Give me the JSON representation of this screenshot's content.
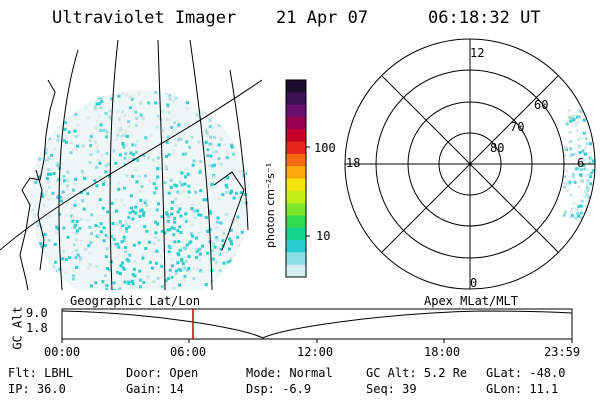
{
  "header": {
    "title": "Ultraviolet Imager",
    "date": "21 Apr 07",
    "time": "06:18:32 UT"
  },
  "colorbar": {
    "unit_label": "photon cm⁻²s⁻¹",
    "ticks": [
      "100",
      "10"
    ],
    "colors": [
      "#1a0a2e",
      "#3b0f52",
      "#6a0f6d",
      "#9a0050",
      "#c4002a",
      "#e4261c",
      "#f56a0f",
      "#f9a70a",
      "#f3e30a",
      "#c6ef1a",
      "#7de82b",
      "#33dc4d",
      "#14d48f",
      "#2ccdd0",
      "#8ae0e6",
      "#d4f0f2"
    ]
  },
  "polar": {
    "labels": {
      "top": "12",
      "bottom": "0",
      "left": "18",
      "right": "6"
    },
    "lat_labels": [
      "60",
      "70",
      "80"
    ]
  },
  "timeline": {
    "left_label": "Geographic Lat/Lon",
    "right_label": "Apex MLat/MLT",
    "axis_title": "GC Alt",
    "y_ticks": [
      "9.0",
      "1.8"
    ],
    "x_ticks": [
      "00:00",
      "06:00",
      "12:00",
      "18:00",
      "23:59"
    ],
    "marker_color": "#cc0000"
  },
  "info": {
    "row1": [
      {
        "k": "Flt:",
        "v": "LBHL"
      },
      {
        "k": "Door:",
        "v": "Open"
      },
      {
        "k": "Mode:",
        "v": "Normal"
      },
      {
        "k": "GC Alt:",
        "v": "5.2 Re"
      },
      {
        "k": "GLat:",
        "v": "-48.0"
      }
    ],
    "row2": [
      {
        "k": "IP:",
        "v": "36.0"
      },
      {
        "k": "Gain:",
        "v": "14"
      },
      {
        "k": "Dsp:",
        "v": "-6.9"
      },
      {
        "k": "Seq:",
        "v": "39"
      },
      {
        "k": "GLon:",
        "v": "11.1"
      }
    ]
  }
}
